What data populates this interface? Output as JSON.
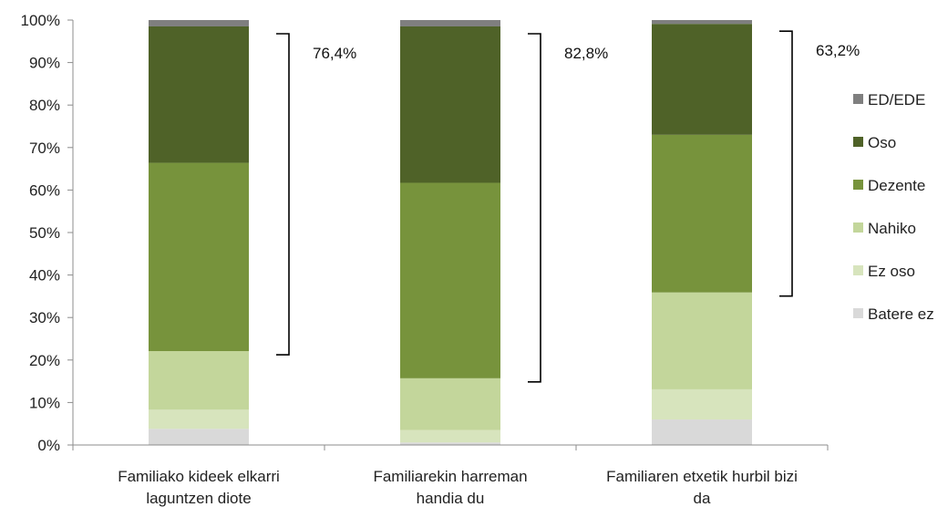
{
  "chart_data": {
    "type": "bar",
    "stacked": true,
    "percent": true,
    "categories": [
      [
        "Familiako kideek elkarri",
        "laguntzen diote"
      ],
      [
        "Familiarekin harreman",
        "handia du"
      ],
      [
        "Familiaren etxetik hurbil bizi",
        "da"
      ]
    ],
    "series": [
      {
        "name": "Batere ez",
        "color": "#d9d9d9",
        "values": [
          3.8,
          0.6,
          6.0
        ]
      },
      {
        "name": "Ez oso",
        "color": "#d7e4bd",
        "values": [
          4.5,
          2.9,
          7.1
        ]
      },
      {
        "name": "Nahiko",
        "color": "#c3d69b",
        "values": [
          13.8,
          12.2,
          22.8
        ]
      },
      {
        "name": "Dezente",
        "color": "#77933c",
        "values": [
          44.3,
          46.0,
          37.1
        ]
      },
      {
        "name": "Oso",
        "color": "#4f6228",
        "values": [
          32.1,
          36.8,
          26.1
        ]
      },
      {
        "name": "ED/EDE",
        "color": "#7f7f7f",
        "values": [
          1.5,
          1.5,
          0.9
        ]
      }
    ],
    "brackets": [
      "76,4%",
      "82,8%",
      "63,2%"
    ],
    "y_ticks": [
      "0%",
      "10%",
      "20%",
      "30%",
      "40%",
      "50%",
      "60%",
      "70%",
      "80%",
      "90%",
      "100%"
    ],
    "ylim": [
      0,
      100
    ],
    "legend_position": "right",
    "grid": false,
    "title": "",
    "xlabel": "",
    "ylabel": ""
  }
}
